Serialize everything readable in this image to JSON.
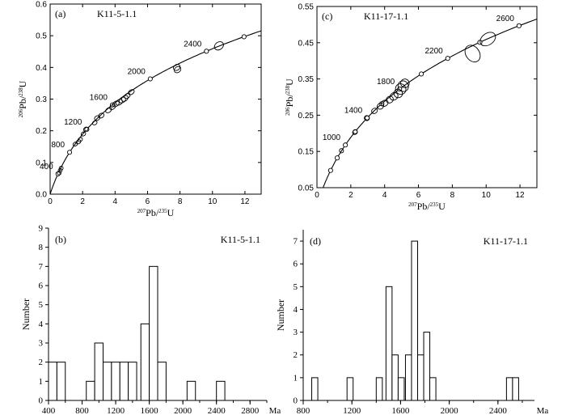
{
  "chart_data": [
    {
      "id": "a",
      "type": "scatter",
      "subtype": "concordia",
      "panel_label": "(a)",
      "sample": "K11-5-1.1",
      "xlabel_sup": "207",
      "xlabel_main": "Pb/",
      "xlabel_sup2": "235",
      "xlabel_end": "U",
      "ylabel_sup": "206",
      "ylabel_main": "Pb/",
      "ylabel_sup2": "238",
      "ylabel_end": "U",
      "xlim": [
        0,
        13
      ],
      "ylim": [
        0,
        0.6
      ],
      "xticks": [
        0,
        2,
        4,
        6,
        8,
        10,
        12
      ],
      "yticks": [
        0.0,
        0.1,
        0.2,
        0.3,
        0.4,
        0.5,
        0.6
      ],
      "ytick_labels": [
        "0.0",
        "0.1",
        "0.2",
        "0.3",
        "0.4",
        "0.5",
        "0.6"
      ],
      "age_labels": [
        "400",
        "800",
        "1200",
        "1600",
        "2000",
        "2400"
      ],
      "age_marks": [
        "400",
        "800",
        "1200",
        "1600",
        "2000",
        "2400",
        "2600"
      ],
      "ellipses": [
        {
          "x": 0.56,
          "y": 0.067,
          "a": 0.12,
          "b": 0.006
        },
        {
          "x": 0.62,
          "y": 0.075,
          "a": 0.12,
          "b": 0.006
        },
        {
          "x": 0.68,
          "y": 0.082,
          "a": 0.12,
          "b": 0.006
        },
        {
          "x": 1.55,
          "y": 0.158,
          "a": 0.15,
          "b": 0.006
        },
        {
          "x": 1.75,
          "y": 0.165,
          "a": 0.15,
          "b": 0.006
        },
        {
          "x": 1.85,
          "y": 0.172,
          "a": 0.15,
          "b": 0.006
        },
        {
          "x": 2.05,
          "y": 0.19,
          "a": 0.15,
          "b": 0.006
        },
        {
          "x": 2.2,
          "y": 0.205,
          "a": 0.15,
          "b": 0.006
        },
        {
          "x": 2.75,
          "y": 0.225,
          "a": 0.15,
          "b": 0.006
        },
        {
          "x": 2.9,
          "y": 0.24,
          "a": 0.18,
          "b": 0.007
        },
        {
          "x": 3.15,
          "y": 0.248,
          "a": 0.18,
          "b": 0.007
        },
        {
          "x": 3.6,
          "y": 0.265,
          "a": 0.2,
          "b": 0.007
        },
        {
          "x": 3.85,
          "y": 0.275,
          "a": 0.2,
          "b": 0.007
        },
        {
          "x": 4.05,
          "y": 0.285,
          "a": 0.22,
          "b": 0.008
        },
        {
          "x": 4.25,
          "y": 0.29,
          "a": 0.22,
          "b": 0.008
        },
        {
          "x": 4.45,
          "y": 0.297,
          "a": 0.22,
          "b": 0.008
        },
        {
          "x": 4.6,
          "y": 0.302,
          "a": 0.22,
          "b": 0.008
        },
        {
          "x": 4.75,
          "y": 0.31,
          "a": 0.2,
          "b": 0.007
        },
        {
          "x": 5.0,
          "y": 0.322,
          "a": 0.2,
          "b": 0.007
        },
        {
          "x": 7.8,
          "y": 0.4,
          "a": 0.22,
          "b": 0.009
        },
        {
          "x": 7.85,
          "y": 0.393,
          "a": 0.22,
          "b": 0.009
        },
        {
          "x": 10.4,
          "y": 0.468,
          "a": 0.3,
          "b": 0.012
        }
      ]
    },
    {
      "id": "c",
      "type": "scatter",
      "subtype": "concordia",
      "panel_label": "(c)",
      "sample": "K11-17-1.1",
      "xlabel_sup": "207",
      "xlabel_main": "Pb/",
      "xlabel_sup2": "235",
      "xlabel_end": "U",
      "ylabel_sup": "206",
      "ylabel_main": "Pb/",
      "ylabel_sup2": "238",
      "ylabel_end": "U",
      "xlim": [
        0,
        13
      ],
      "ylim": [
        0.05,
        0.55
      ],
      "xticks": [
        0,
        2,
        4,
        6,
        8,
        10,
        12
      ],
      "yticks": [
        0.05,
        0.15,
        0.25,
        0.35,
        0.45,
        0.55
      ],
      "ytick_labels": [
        "0.05",
        "0.15",
        "0.25",
        "0.35",
        "0.45",
        "0.55"
      ],
      "age_labels": [
        "1000",
        "1400",
        "1800",
        "2200",
        "2600"
      ],
      "age_marks": [
        "600",
        "800",
        "1000",
        "1200",
        "1400",
        "1600",
        "1800",
        "2000",
        "2200",
        "2400",
        "2600"
      ],
      "ellipses": [
        {
          "x": 1.45,
          "y": 0.152,
          "a": 0.12,
          "b": 0.006
        },
        {
          "x": 2.25,
          "y": 0.203,
          "a": 0.15,
          "b": 0.006
        },
        {
          "x": 2.95,
          "y": 0.242,
          "a": 0.15,
          "b": 0.007
        },
        {
          "x": 3.4,
          "y": 0.262,
          "a": 0.18,
          "b": 0.007
        },
        {
          "x": 3.75,
          "y": 0.275,
          "a": 0.2,
          "b": 0.008
        },
        {
          "x": 4.0,
          "y": 0.283,
          "a": 0.22,
          "b": 0.008
        },
        {
          "x": 4.3,
          "y": 0.293,
          "a": 0.22,
          "b": 0.009
        },
        {
          "x": 4.55,
          "y": 0.302,
          "a": 0.25,
          "b": 0.01
        },
        {
          "x": 4.8,
          "y": 0.31,
          "a": 0.25,
          "b": 0.012
        },
        {
          "x": 4.95,
          "y": 0.322,
          "a": 0.3,
          "b": 0.015
        },
        {
          "x": 5.1,
          "y": 0.33,
          "a": 0.3,
          "b": 0.015
        },
        {
          "x": 5.2,
          "y": 0.338,
          "a": 0.25,
          "b": 0.012
        },
        {
          "x": 9.2,
          "y": 0.42,
          "a": 0.4,
          "b": 0.025
        },
        {
          "x": 10.1,
          "y": 0.46,
          "a": 0.5,
          "b": 0.016
        }
      ]
    },
    {
      "id": "b",
      "type": "bar",
      "subtype": "histogram",
      "panel_label": "(b)",
      "sample": "K11-5-1.1",
      "ylabel": "Number",
      "xunit": "Ma",
      "xlim": [
        400,
        3000
      ],
      "ylim": [
        0,
        9
      ],
      "xticks": [
        400,
        800,
        1200,
        1600,
        2000,
        2400,
        2800
      ],
      "yticks": [
        0,
        1,
        2,
        3,
        4,
        5,
        6,
        7,
        8,
        9
      ],
      "bins": [
        {
          "start": 400,
          "end": 500,
          "count": 2
        },
        {
          "start": 500,
          "end": 600,
          "count": 2
        },
        {
          "start": 850,
          "end": 950,
          "count": 1
        },
        {
          "start": 950,
          "end": 1050,
          "count": 3
        },
        {
          "start": 1050,
          "end": 1150,
          "count": 2
        },
        {
          "start": 1150,
          "end": 1250,
          "count": 2
        },
        {
          "start": 1250,
          "end": 1350,
          "count": 2
        },
        {
          "start": 1350,
          "end": 1450,
          "count": 2
        },
        {
          "start": 1500,
          "end": 1600,
          "count": 4
        },
        {
          "start": 1600,
          "end": 1700,
          "count": 7
        },
        {
          "start": 1700,
          "end": 1800,
          "count": 2
        },
        {
          "start": 2050,
          "end": 2150,
          "count": 1
        },
        {
          "start": 2400,
          "end": 2500,
          "count": 1
        }
      ]
    },
    {
      "id": "d",
      "type": "bar",
      "subtype": "histogram",
      "panel_label": "(d)",
      "sample": "K11-17-1.1",
      "ylabel": "Number",
      "xunit": "Ma",
      "xlim": [
        800,
        2700
      ],
      "ylim": [
        0,
        7.5
      ],
      "xticks": [
        800,
        1200,
        1600,
        2000,
        2400
      ],
      "yticks": [
        0,
        1,
        2,
        3,
        4,
        5,
        6,
        7
      ],
      "bins": [
        {
          "start": 870,
          "end": 920,
          "count": 1
        },
        {
          "start": 1160,
          "end": 1210,
          "count": 1
        },
        {
          "start": 1400,
          "end": 1450,
          "count": 1
        },
        {
          "start": 1480,
          "end": 1530,
          "count": 5
        },
        {
          "start": 1530,
          "end": 1580,
          "count": 2
        },
        {
          "start": 1580,
          "end": 1630,
          "count": 1
        },
        {
          "start": 1640,
          "end": 1690,
          "count": 2
        },
        {
          "start": 1690,
          "end": 1740,
          "count": 7
        },
        {
          "start": 1740,
          "end": 1790,
          "count": 2
        },
        {
          "start": 1790,
          "end": 1840,
          "count": 3
        },
        {
          "start": 1840,
          "end": 1890,
          "count": 1
        },
        {
          "start": 2470,
          "end": 2520,
          "count": 1
        },
        {
          "start": 2520,
          "end": 2570,
          "count": 1
        }
      ]
    }
  ]
}
